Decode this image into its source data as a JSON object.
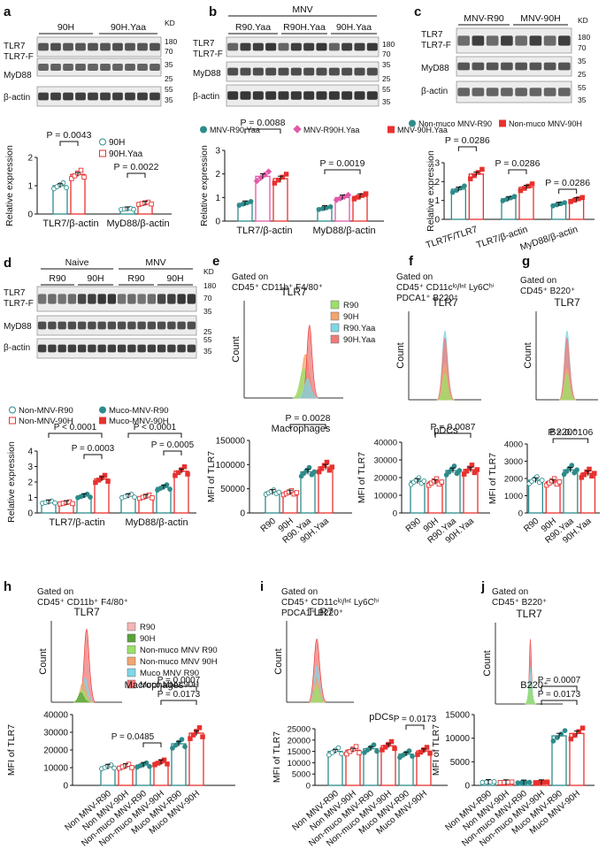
{
  "colors": {
    "teal": "#2e8b8b",
    "red": "#e8312e",
    "pink": "#e05aa8",
    "lightgreen": "#9be06b",
    "orange": "#f2a56e",
    "cyan": "#7fd7e6",
    "salmon": "#f07a7a",
    "green": "#5aa33a",
    "lightpink": "#f3b5b5"
  },
  "blots": {
    "a": {
      "label": "a",
      "groups": [
        "90H",
        "90H.Yaa"
      ],
      "rows": [
        "TLR7",
        "TLR7-F",
        "MyD88",
        "β-actin"
      ],
      "kd": [
        "KD",
        "180",
        "70",
        "35",
        "25",
        "55",
        "35"
      ]
    },
    "b": {
      "label": "b",
      "header": "MNV",
      "groups": [
        "R90.Yaa",
        "R90H.Yaa",
        "90H.Yaa"
      ],
      "rows": [
        "TLR7",
        "TLR7-F",
        "MyD88",
        "β-actin"
      ],
      "kd": [
        "KD",
        "180",
        "70",
        "35",
        "25",
        "55",
        "35"
      ]
    },
    "c": {
      "label": "c",
      "groups": [
        "MNV-R90",
        "MNV-90H"
      ],
      "rows": [
        "TLR7",
        "TLR7-F",
        "MyD88",
        "β-actin"
      ],
      "kd": [
        "KD",
        "180",
        "70",
        "35",
        "25",
        "55",
        "35"
      ]
    },
    "d": {
      "label": "d",
      "headers": [
        "Naive",
        "MNV"
      ],
      "groups": [
        "R90",
        "90H",
        "R90",
        "90H"
      ],
      "rows": [
        "TLR7",
        "TLR7-F",
        "MyD88",
        "β-actin"
      ],
      "kd": [
        "KD",
        "180",
        "70",
        "35",
        "25",
        "55",
        "35"
      ]
    }
  },
  "histograms": {
    "e": {
      "label": "e",
      "gate": [
        "Gated on",
        "CD45⁺ CD11b⁺ F4/80⁺"
      ],
      "title": "TLR7",
      "ylabel": "Count",
      "legend": [
        "R90",
        "90H",
        "R90.Yaa",
        "90H.Yaa"
      ]
    },
    "f": {
      "label": "f",
      "gate": [
        "Gated on",
        "CD45⁺ CD11cˡᵒ/ᴵⁿᵗ Ly6Cʰⁱ",
        "PDCA1⁺ B220⁺"
      ],
      "title": "TLR7",
      "ylabel": "Count"
    },
    "g": {
      "label": "g",
      "gate": [
        "Gated on",
        "CD45⁺ B220⁺"
      ],
      "title": "TLR7",
      "ylabel": "Count"
    },
    "h": {
      "label": "h",
      "gate": [
        "Gated on",
        "CD45⁺ CD11b⁺ F4/80⁺"
      ],
      "title": "TLR7",
      "ylabel": "Count",
      "legend": [
        "R90",
        "90H",
        "Non-muco MNV R90",
        "Non-muco MNV 90H",
        "Muco MNV R90",
        "Muco MNV 90H"
      ]
    },
    "i": {
      "label": "i",
      "gate": [
        "Gated on",
        "CD45⁺ CD11cˡᵒ/ᴵⁿᵗ Ly6Cʰⁱ",
        "PDCA1⁺ B220⁺"
      ],
      "title": "TLR7",
      "ylabel": "Count"
    },
    "j": {
      "label": "j",
      "gate": [
        "Gated on",
        "CD45⁺ B220⁺"
      ],
      "title": "TLR7",
      "ylabel": "Count"
    }
  },
  "chart_data": [
    {
      "id": "a",
      "type": "bar",
      "ylabel": "Relative expression",
      "ylim": [
        0,
        2
      ],
      "yticks": [
        0,
        1,
        2
      ],
      "categories": [
        "TLR7/β-actin",
        "MyD88/β-actin"
      ],
      "legend": [
        "90H",
        "90H.Yaa"
      ],
      "series": [
        {
          "name": "90H",
          "values": [
            1.0,
            0.18
          ]
        },
        {
          "name": "90H.Yaa",
          "values": [
            1.4,
            0.38
          ]
        }
      ],
      "annotations": [
        "P = 0.0043",
        "P = 0.0022"
      ]
    },
    {
      "id": "b",
      "type": "bar",
      "ylabel": "Relative expression",
      "ylim": [
        0,
        3
      ],
      "yticks": [
        0,
        1,
        2,
        3
      ],
      "categories": [
        "TLR7/β-actin",
        "MyD88/β-actin"
      ],
      "legend": [
        "MNV-R90.Yaa",
        "MNV-R90H.Yaa",
        "MNV-90H.Yaa"
      ],
      "series": [
        {
          "name": "MNV-R90.Yaa",
          "values": [
            0.75,
            0.55
          ]
        },
        {
          "name": "MNV-R90H.Yaa",
          "values": [
            1.9,
            1.0
          ]
        },
        {
          "name": "MNV-90H.Yaa",
          "values": [
            1.8,
            1.05
          ]
        }
      ],
      "annotations": [
        "P = 0.0088",
        "P = 0.0019"
      ]
    },
    {
      "id": "c",
      "type": "bar",
      "ylabel": "Relative expression",
      "ylim": [
        0,
        3
      ],
      "yticks": [
        0,
        1,
        2,
        3
      ],
      "categories": [
        "TLR7F/TLR7",
        "TLR7/β-actin",
        "MyD88/β-actin"
      ],
      "legend": [
        "Non-muco MNV-R90",
        "Non-muco MNV-90H"
      ],
      "series": [
        {
          "name": "Non-muco MNV-R90",
          "values": [
            1.6,
            1.1,
            0.8
          ]
        },
        {
          "name": "Non-muco MNV-90H",
          "values": [
            2.4,
            1.7,
            1.05
          ]
        }
      ],
      "annotations": [
        "P = 0.0286",
        "P = 0.0286",
        "P = 0.0286"
      ]
    },
    {
      "id": "d",
      "type": "bar",
      "ylabel": "Relative expression",
      "ylim": [
        0,
        4
      ],
      "yticks": [
        0,
        1,
        2,
        3,
        4
      ],
      "categories": [
        "TLR7/β-actin",
        "MyD88/β-actin"
      ],
      "legend": [
        "Non-MNV-R90",
        "Non-MNV-90H",
        "Muco-MNV-R90",
        "Muco-MNV-90H"
      ],
      "series": [
        {
          "name": "Non-MNV-R90",
          "values": [
            0.7,
            1.1
          ]
        },
        {
          "name": "Non-MNV-90H",
          "values": [
            0.65,
            1.05
          ]
        },
        {
          "name": "Muco-MNV-R90",
          "values": [
            1.1,
            1.65
          ]
        },
        {
          "name": "Muco-MNV-90H",
          "values": [
            2.2,
            2.7
          ]
        }
      ],
      "annotations": [
        "P < 0.0001",
        "P = 0.0003",
        "P < 0.0001",
        "P = 0.0005"
      ]
    },
    {
      "id": "e",
      "type": "bar",
      "title": "Macrophages",
      "ylabel": "MFI of TLR7",
      "ylim": [
        0,
        150000
      ],
      "yticks": [
        "0",
        "50000",
        "100000",
        "150000"
      ],
      "categories": [
        "R90",
        "90H",
        "R90.Yaa",
        "90H.Yaa"
      ],
      "values": [
        43000,
        42000,
        85000,
        95000
      ],
      "annotations": [
        "P = 0.0028"
      ]
    },
    {
      "id": "f",
      "type": "bar",
      "title": "pDCs",
      "ylabel": "MFI of TLR7",
      "ylim": [
        0,
        40000
      ],
      "yticks": [
        "0",
        "10000",
        "20000",
        "30000",
        "40000"
      ],
      "categories": [
        "R90",
        "90H",
        "R90.Yaa",
        "90H.Yaa"
      ],
      "values": [
        18000,
        17500,
        24000,
        24500
      ],
      "annotations": [
        "P = 0.0087"
      ]
    },
    {
      "id": "g",
      "type": "bar",
      "title": "B220⁺",
      "ylabel": "MFI of TLR7",
      "ylim": [
        0,
        4000
      ],
      "yticks": [
        "0",
        "1000",
        "2000",
        "3000",
        "4000"
      ],
      "categories": [
        "R90",
        "90H",
        "R90.Yaa",
        "90H.Yaa"
      ],
      "values": [
        1900,
        1800,
        2500,
        2300
      ],
      "annotations": [
        "P = 0.0106"
      ]
    },
    {
      "id": "h",
      "type": "bar",
      "title": "Macrophages",
      "ylabel": "MFI of TLR7",
      "ylim": [
        0,
        40000
      ],
      "yticks": [
        "0",
        "10000",
        "20000",
        "30000",
        "40000"
      ],
      "categories": [
        "Non MNV-R90",
        "Non MNV-90H",
        "Non-muco MNV-R90",
        "Non-muco MNV-90H",
        "Muco MNV-R90",
        "Muco MNV-90H"
      ],
      "values": [
        10500,
        10800,
        11500,
        13000,
        23500,
        29500
      ],
      "annotations": [
        "P = 0.0485",
        "P = 0.0173",
        "P = 0.0007"
      ]
    },
    {
      "id": "i",
      "type": "bar",
      "title": "pDCs",
      "ylabel": "MFI of TLR7",
      "ylim": [
        0,
        25000
      ],
      "yticks": [
        "0",
        "5000",
        "10000",
        "15000",
        "20000",
        "25000"
      ],
      "categories": [
        "Non MNV-R90",
        "Non MNV-90H",
        "Non-muco MNV-R90",
        "Non-muco MNV-90H",
        "Muco MNV-R90",
        "Muco MNV-90H"
      ],
      "values": [
        15000,
        15500,
        16200,
        17500,
        13800,
        15200
      ],
      "annotations": [
        "P = 0.0173"
      ]
    },
    {
      "id": "j",
      "type": "bar",
      "title": "B220⁺",
      "ylabel": "MFI of TLR7",
      "ylim": [
        0,
        15000
      ],
      "yticks": [
        "0",
        "5000",
        "10000",
        "15000"
      ],
      "categories": [
        "Non MNV-R90",
        "Non MNV-90H",
        "Non-muco MNV-R90",
        "Non-muco MNV-90H",
        "Muco MNV-R90",
        "Muco MNV-90H"
      ],
      "values": [
        700,
        650,
        600,
        650,
        10500,
        11000
      ],
      "annotations": [
        "P = 0.0007",
        "P = 0.0173"
      ]
    }
  ]
}
